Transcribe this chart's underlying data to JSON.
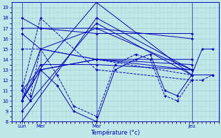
{
  "xlabel": "Température (°c)",
  "bg_color": "#c0e8e8",
  "grid_color": "#a0c8c8",
  "line_color": "#0000bb",
  "ylim": [
    8,
    19.5
  ],
  "yticks": [
    8,
    9,
    10,
    11,
    12,
    13,
    14,
    15,
    16,
    17,
    18,
    19
  ],
  "xlim": [
    0,
    1.0
  ],
  "day_ticks": {
    "LUN": 0.05,
    "MER": 0.14,
    "MAR": 0.41,
    "JEU": 0.87
  },
  "lines": [
    {
      "x": [
        0.05,
        0.41,
        0.87,
        0.97
      ],
      "y": [
        11.0,
        19.5,
        12.5,
        12.5
      ],
      "dash": false
    },
    {
      "x": [
        0.05,
        0.41,
        0.87
      ],
      "y": [
        9.0,
        17.5,
        12.5
      ],
      "dash": false
    },
    {
      "x": [
        0.05,
        0.41,
        0.87
      ],
      "y": [
        8.0,
        18.0,
        13.0
      ],
      "dash": false
    },
    {
      "x": [
        0.05,
        0.14,
        0.41,
        0.87
      ],
      "y": [
        10.0,
        15.0,
        14.0,
        14.0
      ],
      "dash": false
    },
    {
      "x": [
        0.05,
        0.14,
        0.41,
        0.87
      ],
      "y": [
        10.0,
        13.0,
        14.0,
        13.5
      ],
      "dash": false
    },
    {
      "x": [
        0.05,
        0.14,
        0.41,
        0.87
      ],
      "y": [
        10.0,
        13.0,
        14.0,
        13.0
      ],
      "dash": false
    },
    {
      "x": [
        0.05,
        0.14,
        0.41,
        0.87
      ],
      "y": [
        10.0,
        13.5,
        13.5,
        13.0
      ],
      "dash": false
    },
    {
      "x": [
        0.05,
        0.14,
        0.41,
        0.87
      ],
      "y": [
        18.0,
        17.0,
        16.5,
        16.5
      ],
      "dash": false
    },
    {
      "x": [
        0.05,
        0.14,
        0.41,
        0.87
      ],
      "y": [
        17.0,
        17.0,
        17.0,
        16.0
      ],
      "dash": false
    },
    {
      "x": [
        0.05,
        0.14,
        0.41,
        0.87
      ],
      "y": [
        16.5,
        15.0,
        17.0,
        13.0
      ],
      "dash": false
    },
    {
      "x": [
        0.05,
        0.14,
        0.41,
        0.87
      ],
      "y": [
        15.0,
        15.0,
        14.0,
        12.5
      ],
      "dash": true
    },
    {
      "x": [
        0.05,
        0.14,
        0.41,
        0.87
      ],
      "y": [
        11.0,
        18.0,
        13.0,
        12.0
      ],
      "dash": true
    },
    {
      "x": [
        0.05,
        0.09,
        0.14,
        0.22,
        0.3,
        0.41,
        0.5,
        0.6,
        0.67,
        0.74,
        0.8,
        0.87,
        0.92,
        0.97
      ],
      "y": [
        11.0,
        10.0,
        13.0,
        11.5,
        9.0,
        8.0,
        13.0,
        14.0,
        14.5,
        11.0,
        10.5,
        12.5,
        15.0,
        15.0
      ],
      "dash": false
    },
    {
      "x": [
        0.05,
        0.09,
        0.14,
        0.22,
        0.3,
        0.41,
        0.5,
        0.6,
        0.67,
        0.74,
        0.8,
        0.87,
        0.92,
        0.97
      ],
      "y": [
        11.5,
        10.5,
        15.0,
        12.5,
        9.5,
        8.5,
        13.5,
        14.5,
        14.0,
        10.5,
        10.0,
        12.0,
        12.0,
        12.5
      ],
      "dash": true
    }
  ]
}
